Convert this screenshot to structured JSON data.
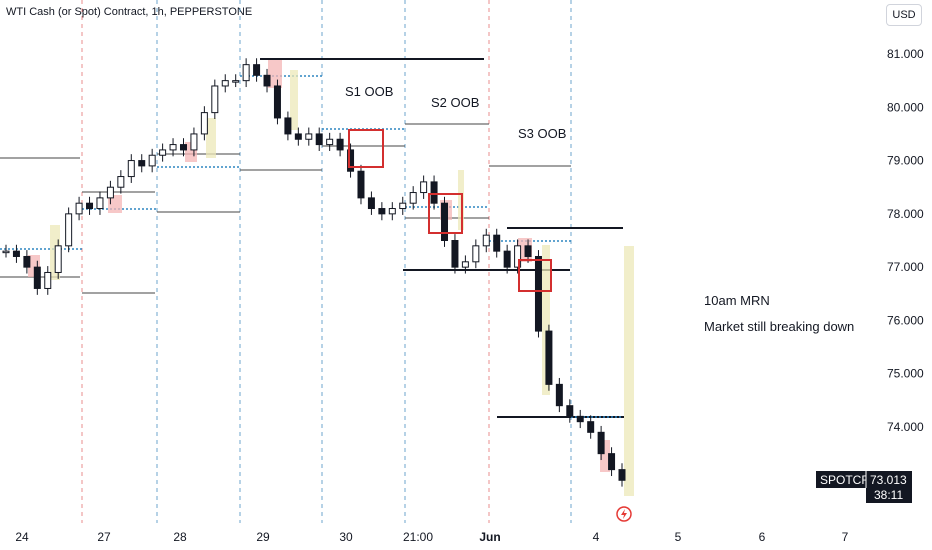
{
  "header": {
    "title": "WTI Cash (or Spot) Contract, 1h, PEPPERSTONE",
    "currency": "USD"
  },
  "price_tag": {
    "symbol": "SPOTCRUDE",
    "price": "73.013",
    "countdown": "38:11"
  },
  "chart_data": {
    "type": "line",
    "title": "",
    "xlabel": "",
    "ylabel": "",
    "x_ticks": [
      "24",
      "27",
      "28",
      "29",
      "30",
      "21:00",
      "Jun",
      "4",
      "5",
      "6",
      "7"
    ],
    "y_ticks": [
      "74.000",
      "75.000",
      "76.000",
      "77.000",
      "78.000",
      "79.000",
      "80.000",
      "81.000"
    ],
    "ylim": [
      72.5,
      81.6
    ],
    "grid": false,
    "annotations": [
      {
        "text": "S1 OOB"
      },
      {
        "text": "S2 OOB"
      },
      {
        "text": "S3 OOB"
      },
      {
        "text": "10am MRN"
      },
      {
        "text": "Market still breaking down"
      }
    ],
    "series": [
      {
        "values": [
          77.3,
          77.2,
          77.0,
          76.6,
          76.9,
          77.4,
          78.0,
          78.2,
          78.1,
          78.3,
          78.5,
          78.7,
          79.0,
          78.9,
          79.1,
          79.2,
          79.3,
          79.2,
          79.5,
          79.9,
          80.4,
          80.5,
          80.5,
          80.8,
          80.6,
          80.4,
          79.8,
          79.5,
          79.4,
          79.5,
          79.3,
          79.4,
          79.2,
          78.8,
          78.3,
          78.1,
          78.0,
          78.1,
          78.2,
          78.4,
          78.6,
          78.2,
          77.5,
          77.0,
          77.1,
          77.4,
          77.6,
          77.3,
          77.0,
          77.4,
          77.2,
          75.8,
          74.8,
          74.4,
          74.2,
          74.1,
          73.9,
          73.5,
          73.2,
          73.0
        ]
      }
    ]
  }
}
